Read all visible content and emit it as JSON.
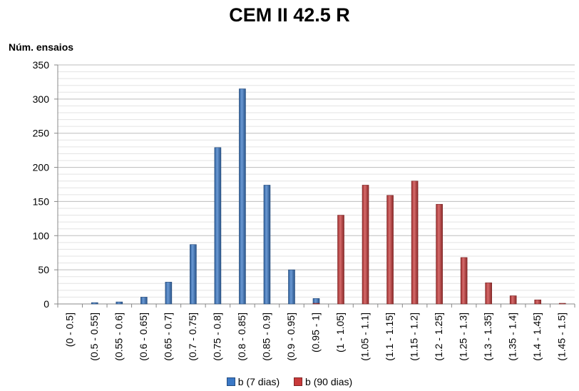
{
  "chart_data": {
    "type": "bar",
    "title": "CEM II 42.5 R",
    "ylabel": "Núm. ensaios",
    "xlabel": "",
    "ylim": [
      0,
      350
    ],
    "yticks": [
      0,
      50,
      100,
      150,
      200,
      250,
      300,
      350
    ],
    "grid": true,
    "legend_position": "bottom",
    "categories": [
      "(0 - 0.5]",
      "(0.5 - 0.55]",
      "(0.55 - 0.6]",
      "(0.6 - 0.65]",
      "(0.65 - 0.7]",
      "(0.7 - 0.75]",
      "(0.75 - 0.8]",
      "(0.8 - 0.85]",
      "(0.85 - 0.9]",
      "(0.9 - 0.95]",
      "(0.95 - 1]",
      "(1 - 1.05]",
      "(1.05 - 1.1]",
      "(1.1 - 1.15]",
      "(1.15 - 1.2]",
      "(1.2 - 1.25]",
      "(1.25 - 1.3]",
      "(1.3 - 1.35]",
      "(1.35 - 1.4]",
      "(1.4 - 1.45]",
      "(1.45 - 1.5]"
    ],
    "series": [
      {
        "name": "b (7 dias)",
        "color": "#3a78c6",
        "values": [
          0,
          2,
          3,
          10,
          32,
          87,
          229,
          315,
          174,
          50,
          8,
          0,
          0,
          0,
          0,
          0,
          0,
          0,
          0,
          0,
          0
        ]
      },
      {
        "name": "b (90 dias)",
        "color": "#c83a3a",
        "values": [
          0,
          0,
          0,
          0,
          0,
          0,
          0,
          0,
          0,
          0,
          1,
          130,
          174,
          159,
          180,
          146,
          68,
          31,
          12,
          6,
          1
        ]
      }
    ]
  }
}
